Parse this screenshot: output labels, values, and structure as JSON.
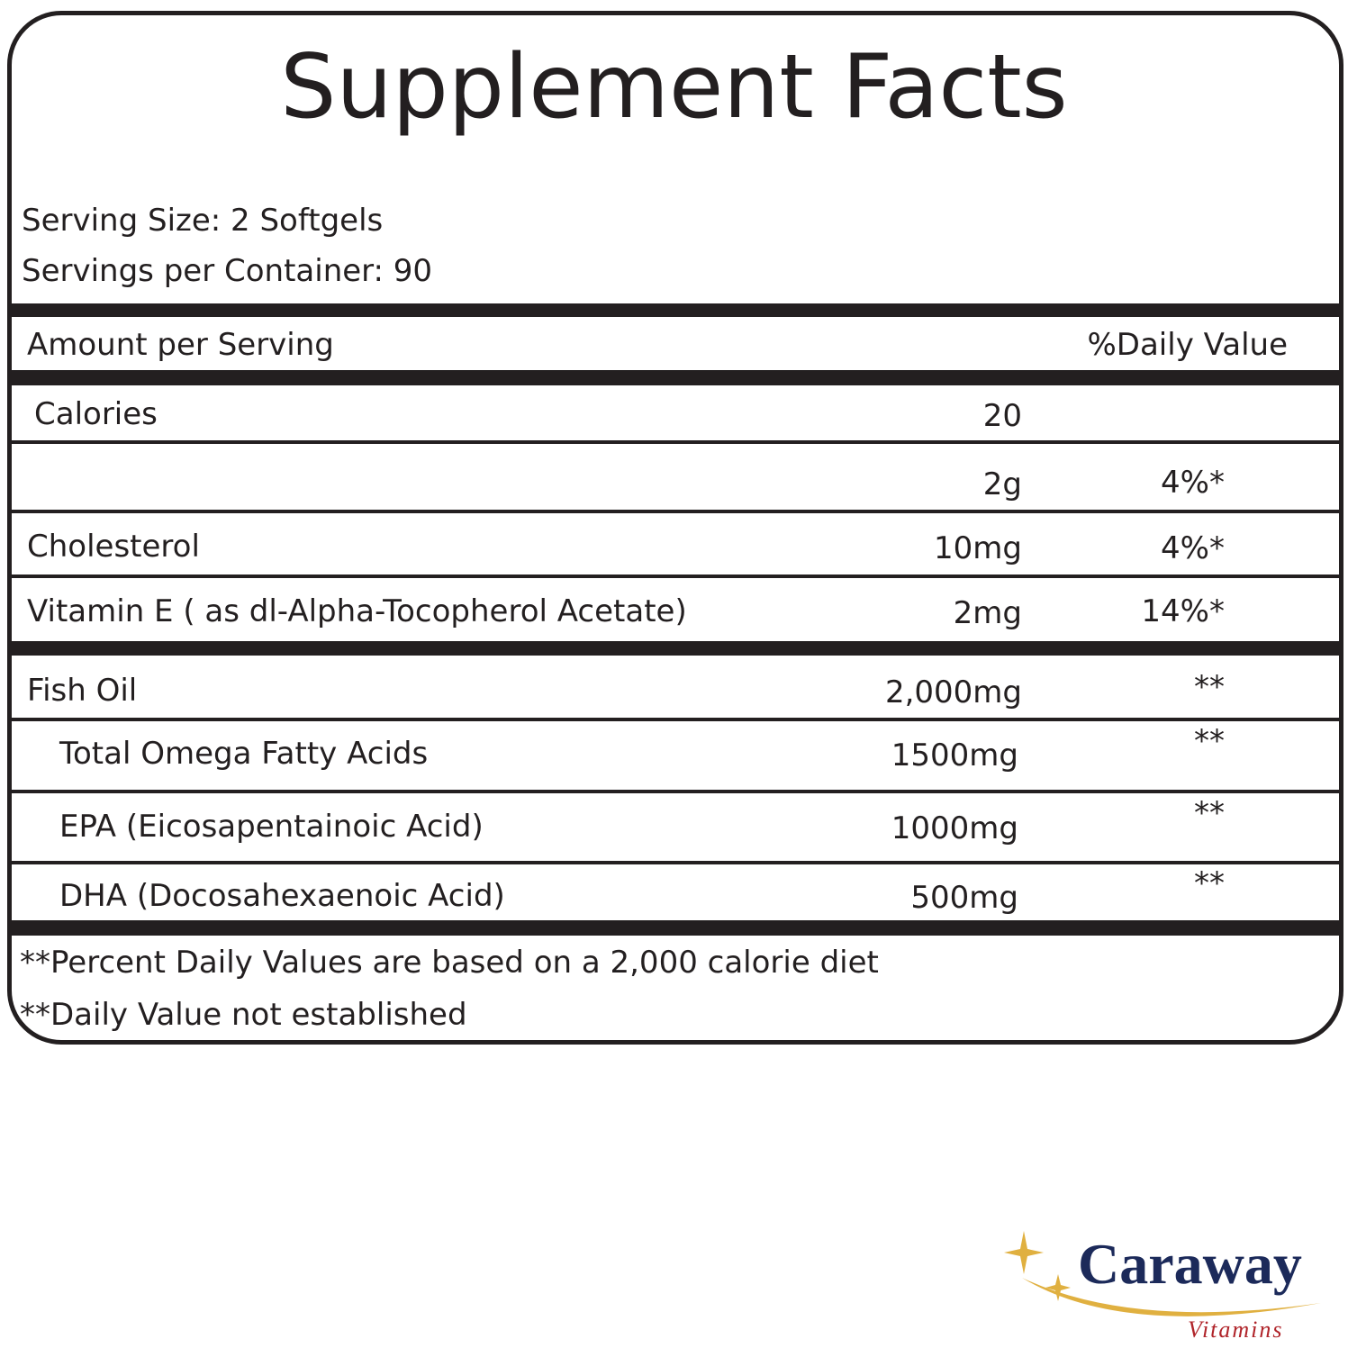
{
  "header": {
    "title": "Supplement Facts",
    "serving_size": "Serving Size: 2 Softgels",
    "servings_per_container": "Servings per Container: 90"
  },
  "table": {
    "columns": {
      "amount_per_serving": "Amount per Serving",
      "daily_value": "%Daily Value"
    },
    "rows": [
      {
        "name": "Calories",
        "amount": "20"
      },
      {
        "amount": "2g",
        "daily_value": "4%*"
      },
      {
        "name": "Cholesterol",
        "amount": "10mg",
        "daily_value": "4%*"
      },
      {
        "name": "Vitamin E ( as dl-Alpha-Tocopherol Acetate)",
        "amount": "2mg",
        "daily_value": "14%*"
      },
      {
        "name": "Fish Oil",
        "amount": "2,000mg",
        "daily_value": "**"
      },
      {
        "name": "Total Omega Fatty Acids",
        "amount": "1500mg",
        "daily_value": "**"
      },
      {
        "name": "EPA (Eicosapentainoic Acid)",
        "amount": "1000mg",
        "daily_value": "**"
      },
      {
        "name": "DHA (Docosahexaenoic Acid)",
        "amount": "500mg",
        "daily_value": "**"
      }
    ]
  },
  "footnotes": [
    "**Percent Daily Values are based on a 2,000 calorie diet",
    "**Daily Value not established"
  ],
  "brand": {
    "name": "Caraway",
    "tagline": "Vitamins"
  }
}
